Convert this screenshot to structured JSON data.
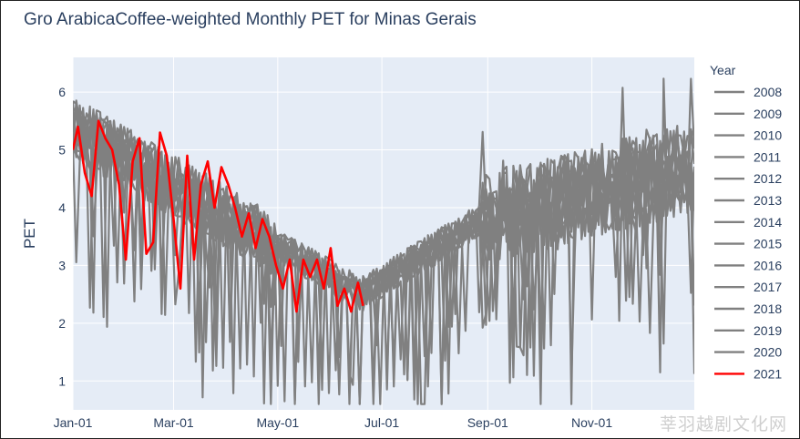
{
  "chart_data": {
    "type": "line",
    "title": "Gro ArabicaCoffee-weighted Monthly PET for Minas Gerais",
    "xlabel": "",
    "ylabel": "PET",
    "legend_title": "Year",
    "legend_position": "right",
    "x_ticks": [
      "Jan-01",
      "Mar-01",
      "May-01",
      "Jul-01",
      "Sep-01",
      "Nov-01"
    ],
    "x_range_days": [
      1,
      365
    ],
    "y_ticks": [
      1,
      2,
      3,
      4,
      5,
      6
    ],
    "ylim": [
      0.5,
      6.6
    ],
    "grid": true,
    "colors": {
      "history": "#808080",
      "current": "#ff0000",
      "plot_bg": "#e5ecf6"
    },
    "series": [
      {
        "name": "2008",
        "color": "#808080"
      },
      {
        "name": "2009",
        "color": "#808080"
      },
      {
        "name": "2010",
        "color": "#808080"
      },
      {
        "name": "2011",
        "color": "#808080"
      },
      {
        "name": "2012",
        "color": "#808080"
      },
      {
        "name": "2013",
        "color": "#808080"
      },
      {
        "name": "2014",
        "color": "#808080"
      },
      {
        "name": "2015",
        "color": "#808080"
      },
      {
        "name": "2016",
        "color": "#808080"
      },
      {
        "name": "2017",
        "color": "#808080"
      },
      {
        "name": "2018",
        "color": "#808080"
      },
      {
        "name": "2019",
        "color": "#808080"
      },
      {
        "name": "2020",
        "color": "#808080"
      },
      {
        "name": "2021",
        "color": "#ff0000",
        "x": [
          "Jan-01",
          "Jan-04",
          "Jan-08",
          "Jan-12",
          "Jan-16",
          "Jan-20",
          "Jan-24",
          "Jan-28",
          "Feb-01",
          "Feb-05",
          "Feb-09",
          "Feb-13",
          "Feb-17",
          "Feb-21",
          "Feb-25",
          "Mar-01",
          "Mar-05",
          "Mar-09",
          "Mar-13",
          "Mar-17",
          "Mar-21",
          "Mar-25",
          "Mar-29",
          "Apr-02",
          "Apr-06",
          "Apr-10",
          "Apr-14",
          "Apr-18",
          "Apr-22",
          "Apr-26",
          "Apr-30",
          "May-04",
          "May-08",
          "May-12",
          "May-16",
          "May-20",
          "May-24",
          "May-28",
          "Jun-01",
          "Jun-05",
          "Jun-09",
          "Jun-13",
          "Jun-17",
          "Jun-20"
        ],
        "values": [
          5.0,
          5.4,
          4.6,
          4.2,
          5.5,
          5.2,
          5.0,
          4.4,
          3.1,
          4.8,
          5.2,
          3.2,
          3.4,
          5.3,
          4.9,
          3.8,
          2.6,
          4.9,
          3.1,
          4.4,
          4.8,
          4.0,
          4.7,
          4.4,
          4.0,
          3.5,
          3.9,
          3.3,
          3.8,
          3.5,
          3.0,
          2.6,
          3.1,
          2.2,
          3.1,
          2.8,
          3.1,
          2.6,
          3.3,
          2.3,
          2.6,
          2.2,
          2.7,
          2.3
        ]
      }
    ]
  }
}
